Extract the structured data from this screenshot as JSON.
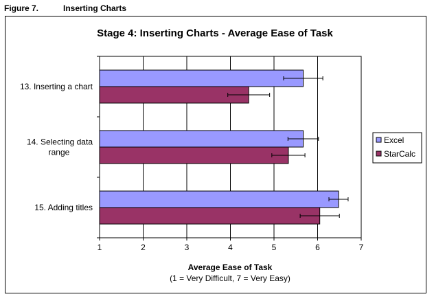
{
  "figure": {
    "number": "Figure 7.",
    "title": "Inserting Charts"
  },
  "colors": {
    "excel": "#9999ff",
    "starcalc": "#993366",
    "plot_bg": "#ffffff",
    "grid": "#000000"
  },
  "chart_data": {
    "type": "bar",
    "orientation": "horizontal",
    "title": "Stage 4: Inserting Charts - Average Ease of Task",
    "xlabel": "Average Ease of Task",
    "xlabel_sub": "(1 = Very Difficult, 7 = Very Easy)",
    "ylabel": "",
    "xlim": [
      1,
      7
    ],
    "xticks": [
      "1",
      "2",
      "3",
      "4",
      "5",
      "6",
      "7"
    ],
    "grid": true,
    "legend_position": "right",
    "categories": [
      [
        "13. Inserting a chart"
      ],
      [
        "14. Selecting data",
        "range"
      ],
      [
        "15. Adding titles"
      ]
    ],
    "series": [
      {
        "name": "Excel",
        "values": [
          5.67,
          5.67,
          6.48
        ],
        "errors": [
          0.45,
          0.35,
          0.22
        ]
      },
      {
        "name": "StarCalc",
        "values": [
          4.42,
          5.33,
          6.05
        ],
        "errors": [
          0.48,
          0.38,
          0.45
        ]
      }
    ]
  }
}
